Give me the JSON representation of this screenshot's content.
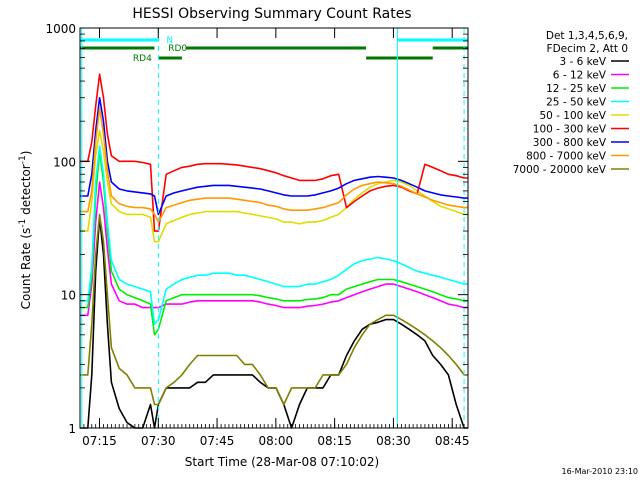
{
  "chart_data": {
    "type": "line",
    "title": "HESSI Observing Summary Count Rates",
    "xlabel": "Start Time (28-Mar-08 07:10:02)",
    "ylabel": "Count Rate (s⁻¹ detector⁻¹)",
    "ylabel_main": "Count Rate (s",
    "ylabel_sup1": "-1",
    "ylabel_mid": " detector",
    "ylabel_sup2": "-1",
    "ylabel_end": ")",
    "y_scale": "log",
    "xlim_minutes": [
      0,
      99
    ],
    "ylim": [
      1,
      1000
    ],
    "x_ticks": [
      {
        "label": "07:15",
        "minute": 4.97
      },
      {
        "label": "07:30",
        "minute": 19.97
      },
      {
        "label": "07:45",
        "minute": 34.97
      },
      {
        "label": "08:00",
        "minute": 49.97
      },
      {
        "label": "08:15",
        "minute": 64.97
      },
      {
        "label": "08:30",
        "minute": 79.97
      },
      {
        "label": "08:45",
        "minute": 94.97
      }
    ],
    "y_ticks": [
      {
        "label": "1",
        "value": 1
      },
      {
        "label": "10",
        "value": 10
      },
      {
        "label": "100",
        "value": 100
      },
      {
        "label": "1000",
        "value": 1000
      }
    ],
    "legend_header": [
      "Det 1,3,4,5,6,9,",
      "FDecim 2, Att 0"
    ],
    "legend_position": "right",
    "x": [
      0,
      2,
      3,
      4,
      5,
      6,
      7,
      8,
      10,
      12,
      14,
      16,
      18,
      19,
      20,
      22,
      24,
      26,
      28,
      30,
      32,
      34,
      36,
      38,
      40,
      42,
      44,
      46,
      48,
      50,
      52,
      54,
      56,
      58,
      60,
      62,
      64,
      66,
      68,
      70,
      72,
      74,
      76,
      78,
      80,
      82,
      84,
      86,
      88,
      90,
      92,
      94,
      96,
      98,
      99
    ],
    "series": [
      {
        "name": "3 - 6 keV",
        "color": "#000000",
        "values": [
          1,
          1,
          2.5,
          15,
          38,
          20,
          6,
          2.2,
          1.4,
          1.1,
          1,
          1,
          1.5,
          1,
          1.5,
          2,
          2,
          2,
          2,
          2.2,
          2.2,
          2.5,
          2.5,
          2.5,
          2.5,
          2.5,
          2.5,
          2.2,
          2,
          2,
          1.5,
          1,
          1.5,
          2,
          2,
          2,
          2.5,
          2.5,
          3.5,
          4.5,
          5.5,
          6,
          6.2,
          6.5,
          6.5,
          6,
          5.5,
          5,
          4.5,
          3.5,
          3,
          2.5,
          1.5,
          1,
          1
        ]
      },
      {
        "name": "6 - 12 keV",
        "color": "#ff00ff",
        "values": [
          7,
          7,
          12,
          35,
          70,
          45,
          22,
          12,
          9,
          8.5,
          8.5,
          8,
          8,
          8,
          8,
          8.5,
          8.5,
          8.5,
          8.8,
          9,
          9,
          9,
          9,
          9,
          9,
          9,
          9,
          8.8,
          8.5,
          8.3,
          8,
          8,
          8,
          8.2,
          8.3,
          8.5,
          8.8,
          9,
          9.5,
          10,
          10.5,
          11,
          11.5,
          12,
          12,
          11.5,
          11,
          10.5,
          10,
          9.5,
          9,
          8.5,
          8.3,
          8,
          8
        ]
      },
      {
        "name": "12 - 25 keV",
        "color": "#00ee00",
        "values": [
          8,
          8,
          14,
          55,
          120,
          70,
          30,
          15,
          11,
          10,
          9.5,
          9,
          8.5,
          5,
          5.5,
          9,
          9.5,
          10,
          10,
          10,
          10,
          10,
          10,
          10,
          10,
          10,
          10,
          9.8,
          9.5,
          9.3,
          9,
          9,
          9,
          9.2,
          9.3,
          9.5,
          10,
          10,
          11,
          11.5,
          12,
          12.5,
          13,
          13,
          13,
          12.5,
          12,
          11.5,
          11,
          10.5,
          10,
          9.5,
          9.3,
          9,
          9
        ]
      },
      {
        "name": "25 - 50 keV",
        "color": "#00ffff",
        "values": [
          9,
          9,
          16,
          70,
          130,
          80,
          35,
          18,
          13,
          12,
          11.5,
          11,
          10.5,
          6,
          6.5,
          11,
          12,
          13,
          13.5,
          14,
          14,
          14.5,
          14.5,
          14.5,
          14,
          14,
          13.5,
          13,
          12.5,
          12,
          11.5,
          11.5,
          11.5,
          12,
          12,
          12.5,
          13,
          14,
          15.5,
          17,
          18,
          18.5,
          19,
          18.5,
          18,
          17,
          16,
          15,
          14.5,
          14,
          13.5,
          13,
          12.5,
          12,
          12
        ]
      },
      {
        "name": "50 - 100 keV",
        "color": "#dddd00",
        "values": [
          30,
          30,
          50,
          110,
          170,
          120,
          70,
          48,
          42,
          40,
          40,
          40,
          38,
          25,
          25,
          34,
          36,
          38,
          40,
          41,
          42,
          42,
          42,
          42,
          42,
          41,
          40,
          39,
          38,
          37,
          35,
          35,
          34,
          35,
          35,
          36,
          38,
          40,
          45,
          52,
          58,
          64,
          68,
          70,
          72,
          70,
          66,
          60,
          55,
          50,
          46,
          44,
          42,
          40,
          40
        ]
      },
      {
        "name": "100 - 300 keV",
        "color": "#ff0000",
        "values": [
          100,
          100,
          140,
          260,
          450,
          300,
          160,
          110,
          100,
          100,
          100,
          98,
          95,
          30,
          30,
          80,
          85,
          90,
          92,
          95,
          96,
          96,
          96,
          95,
          94,
          92,
          90,
          88,
          85,
          82,
          78,
          75,
          72,
          72,
          72,
          74,
          78,
          80,
          45,
          50,
          55,
          60,
          63,
          65,
          66,
          64,
          60,
          57,
          95,
          90,
          85,
          80,
          78,
          75,
          75
        ]
      },
      {
        "name": "300 - 800 keV",
        "color": "#0000ff",
        "values": [
          55,
          55,
          80,
          170,
          300,
          200,
          100,
          70,
          62,
          60,
          59,
          58,
          57,
          55,
          40,
          55,
          58,
          60,
          62,
          64,
          65,
          66,
          66,
          66,
          65,
          64,
          63,
          62,
          60,
          58,
          56,
          55,
          55,
          55,
          56,
          58,
          60,
          63,
          68,
          72,
          74,
          76,
          77,
          76,
          75,
          72,
          68,
          64,
          60,
          58,
          56,
          55,
          54,
          53,
          53
        ]
      },
      {
        "name": "800 - 7000 keV",
        "color": "#ff9900",
        "values": [
          42,
          42,
          60,
          140,
          250,
          160,
          85,
          55,
          48,
          46,
          45,
          45,
          44,
          40,
          35,
          45,
          47,
          49,
          51,
          52,
          53,
          53,
          53,
          53,
          52,
          51,
          50,
          49,
          47,
          46,
          44,
          43,
          43,
          43,
          44,
          45,
          47,
          49,
          56,
          62,
          66,
          68,
          70,
          69,
          68,
          65,
          61,
          57,
          54,
          51,
          49,
          47,
          46,
          45,
          45
        ]
      },
      {
        "name": "7000 - 20000 keV",
        "color": "#808000",
        "values": [
          2.5,
          2.5,
          6,
          20,
          40,
          25,
          10,
          4,
          2.8,
          2.5,
          2,
          2,
          2,
          1.5,
          1.5,
          2,
          2.2,
          2.5,
          3,
          3.5,
          3.5,
          3.5,
          3.5,
          3.5,
          3.5,
          3,
          3,
          2.5,
          2,
          2,
          1.5,
          2,
          2,
          2,
          2,
          2.5,
          2.5,
          2.5,
          3,
          4,
          5,
          6,
          6.5,
          7,
          7,
          6.5,
          6,
          5.5,
          5,
          4.5,
          4,
          3.5,
          3,
          2.5,
          2.5
        ]
      }
    ],
    "flag_bars": [
      {
        "label": "",
        "color": "#00ffff",
        "segments": [
          [
            0,
            20
          ]
        ]
      },
      {
        "label": "N",
        "color": "#00ffff",
        "segments": []
      },
      {
        "label": "",
        "color": "#00ffff",
        "segments": [
          [
            81,
            99
          ]
        ]
      },
      {
        "label": "RD0",
        "color": "#007700",
        "segments": [
          [
            0,
            19
          ],
          [
            27,
            73
          ],
          [
            90,
            99
          ]
        ]
      },
      {
        "label": "RD4",
        "color": "#007700",
        "segments": [
          [
            20,
            26
          ],
          [
            73,
            90
          ]
        ]
      }
    ],
    "vertical_markers": [
      {
        "minute": 20,
        "style": "dashed",
        "color": "#00ffff"
      },
      {
        "minute": 81,
        "style": "solid",
        "color": "#00ffff"
      },
      {
        "minute": 98,
        "style": "dashed",
        "color": "#00ffff"
      }
    ],
    "left_solid_markers": [
      0.2
    ]
  },
  "timestamp": "16-Mar-2010 23:10"
}
